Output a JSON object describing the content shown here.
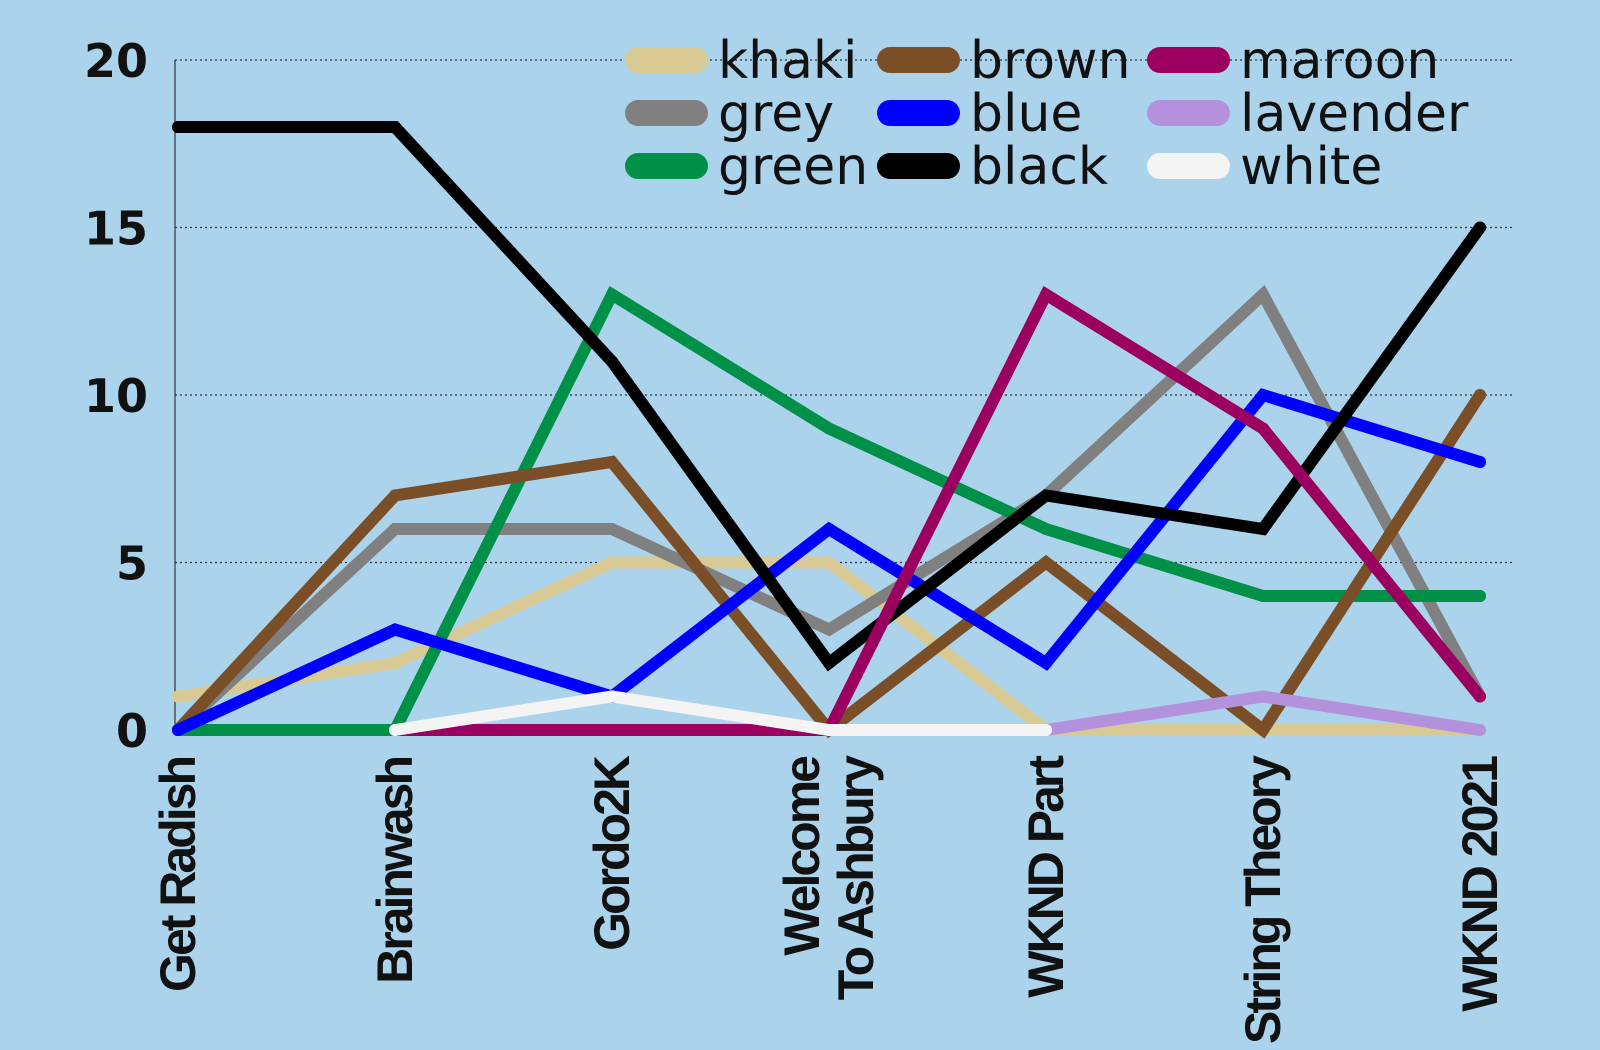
{
  "chart_data": {
    "type": "line",
    "background": "#acd3ec",
    "categories": [
      [
        "Get Radish"
      ],
      [
        "Brainwash"
      ],
      [
        "Gordo2K"
      ],
      [
        "Welcome",
        "To Ashbury"
      ],
      [
        "WKND Part"
      ],
      [
        "String Theory"
      ],
      [
        "WKND 2021"
      ]
    ],
    "ylim": [
      0,
      20
    ],
    "yticks": [
      0,
      5,
      10,
      15,
      20
    ],
    "grid": "horizontal dotted",
    "legend_position": "top-right",
    "series": [
      {
        "name": "khaki",
        "color": "#d8c995",
        "values": [
          1,
          2,
          5,
          5,
          0,
          0,
          0
        ]
      },
      {
        "name": "grey",
        "color": "#808080",
        "values": [
          0,
          6,
          6,
          3,
          7,
          13,
          1
        ]
      },
      {
        "name": "green",
        "color": "#009048",
        "values": [
          0,
          0,
          13,
          9,
          6,
          4,
          4
        ]
      },
      {
        "name": "brown",
        "color": "#7a4f27",
        "values": [
          0,
          7,
          8,
          0,
          5,
          0,
          10
        ]
      },
      {
        "name": "blue",
        "color": "#0000ff",
        "values": [
          0,
          3,
          1,
          6,
          2,
          10,
          8
        ]
      },
      {
        "name": "black",
        "color": "#000000",
        "values": [
          18,
          18,
          11,
          2,
          7,
          6,
          15
        ]
      },
      {
        "name": "maroon",
        "color": "#9b0060",
        "values": [
          null,
          0,
          0,
          0,
          13,
          9,
          1
        ]
      },
      {
        "name": "lavender",
        "color": "#b491dc",
        "values": [
          null,
          null,
          null,
          null,
          0,
          1,
          0
        ]
      },
      {
        "name": "white",
        "color": "#f4f4f4",
        "values": [
          null,
          0,
          1,
          0,
          0,
          null,
          null
        ]
      }
    ]
  }
}
